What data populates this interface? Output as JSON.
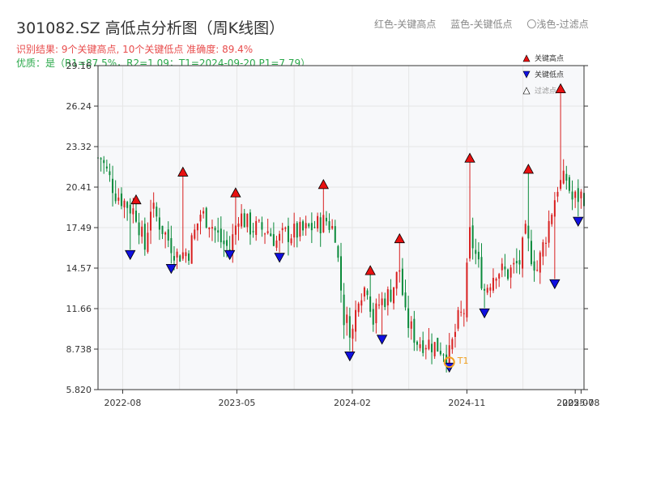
{
  "header": {
    "title": "301082.SZ 高低点分析图（周K线图）",
    "status": "识别结果: 9个关键高点, 10个关键低点  准确度: 89.4%",
    "quality": "优质：是（R1=87.5%，R2=1.09；T1=2024-09-20 P1=7.79）"
  },
  "top_legend": {
    "red": "红色-关键高点",
    "blue": "蓝色-关键低点",
    "gray": "〇浅色-过滤点"
  },
  "colors": {
    "up": "#d81e1e",
    "down": "#0a8a3a",
    "high_marker": "#e81010",
    "low_marker": "#1010e0",
    "t1_marker": "#f0a020",
    "plot_bg": "#f7f8fa",
    "grid": "#e6e6e6"
  },
  "chart_data": {
    "type": "candlestick",
    "ylim": [
      5.82,
      29.16
    ],
    "y_ticks": [
      "29.16",
      "26.24",
      "23.32",
      "20.41",
      "17.49",
      "14.57",
      "11.66",
      "8.738",
      "5.820"
    ],
    "x_ticks": [
      "2022-08",
      "2023-05",
      "2024-02",
      "2024-11",
      "2025-07",
      "2025-08"
    ],
    "legend": [
      {
        "label": "关键高点",
        "color": "#e81010",
        "shape": "triangle-up"
      },
      {
        "label": "关键低点",
        "color": "#1010e0",
        "shape": "triangle-down"
      },
      {
        "label": "过滤点",
        "color": "#ffffff",
        "shape": "triangle-up"
      }
    ],
    "anchor_points": [
      [
        "2022-06-10",
        22.5
      ],
      [
        "2022-07-15",
        20.0
      ],
      [
        "2022-09-02",
        18.5
      ],
      [
        "2022-09-23",
        16.0
      ],
      [
        "2022-10-07",
        19.0
      ],
      [
        "2022-11-11",
        17.0
      ],
      [
        "2022-12-09",
        15.5
      ],
      [
        "2023-01-06",
        15.8
      ],
      [
        "2023-02-03",
        18.5
      ],
      [
        "2023-02-24",
        18.0
      ],
      [
        "2023-03-24",
        16.5
      ],
      [
        "2023-04-14",
        15.9
      ],
      [
        "2023-05-05",
        18.5
      ],
      [
        "2023-06-02",
        17.5
      ],
      [
        "2023-07-14",
        17.3
      ],
      [
        "2023-08-04",
        16.5
      ],
      [
        "2023-08-25",
        17.0
      ],
      [
        "2023-10-06",
        17.2
      ],
      [
        "2023-11-03",
        17.6
      ],
      [
        "2023-12-01",
        18.0
      ],
      [
        "2023-12-22",
        17.2
      ],
      [
        "2024-01-12",
        11.0
      ],
      [
        "2024-02-02",
        10.0
      ],
      [
        "2024-02-16",
        12.8
      ],
      [
        "2024-03-08",
        13.3
      ],
      [
        "2024-03-22",
        10.8
      ],
      [
        "2024-04-05",
        12.0
      ],
      [
        "2024-05-03",
        12.8
      ],
      [
        "2024-05-24",
        14.5
      ],
      [
        "2024-06-07",
        11.0
      ],
      [
        "2024-07-05",
        9.3
      ],
      [
        "2024-08-02",
        9.2
      ],
      [
        "2024-09-06",
        8.7
      ],
      [
        "2024-09-20",
        8.3
      ],
      [
        "2024-10-11",
        10.8
      ],
      [
        "2024-10-25",
        11.5
      ],
      [
        "2024-11-08",
        17.0
      ],
      [
        "2024-11-22",
        15.5
      ],
      [
        "2024-12-13",
        13.0
      ],
      [
        "2025-01-10",
        14.5
      ],
      [
        "2025-02-07",
        14.2
      ],
      [
        "2025-03-07",
        15.0
      ],
      [
        "2025-03-21",
        17.0
      ],
      [
        "2025-04-04",
        15.5
      ],
      [
        "2025-04-18",
        14.5
      ],
      [
        "2025-05-09",
        17.0
      ],
      [
        "2025-06-06",
        20.5
      ],
      [
        "2025-06-27",
        21.0
      ],
      [
        "2025-07-11",
        19.5
      ],
      [
        "2025-08-01",
        19.8
      ]
    ],
    "highs": [
      {
        "date": "2022-09-02",
        "price": 19.2
      },
      {
        "date": "2022-12-23",
        "price": 21.2
      },
      {
        "date": "2023-04-28",
        "price": 19.7
      },
      {
        "date": "2023-11-24",
        "price": 20.3
      },
      {
        "date": "2024-03-15",
        "price": 14.1
      },
      {
        "date": "2024-05-24",
        "price": 16.4
      },
      {
        "date": "2024-11-08",
        "price": 22.2
      },
      {
        "date": "2025-03-28",
        "price": 21.4
      },
      {
        "date": "2025-06-13",
        "price": 27.2
      }
    ],
    "lows": [
      {
        "date": "2022-08-19",
        "price": 15.9
      },
      {
        "date": "2022-11-25",
        "price": 14.9
      },
      {
        "date": "2023-04-14",
        "price": 15.9
      },
      {
        "date": "2023-08-11",
        "price": 15.7
      },
      {
        "date": "2024-01-26",
        "price": 8.6
      },
      {
        "date": "2024-04-12",
        "price": 9.8
      },
      {
        "date": "2024-09-20",
        "price": 7.79
      },
      {
        "date": "2024-12-13",
        "price": 11.7
      },
      {
        "date": "2025-05-30",
        "price": 13.8
      },
      {
        "date": "2025-07-25",
        "price": 18.3
      }
    ],
    "t1": {
      "label": "T1",
      "date": "2024-09-20",
      "price": 7.79
    },
    "filtered": []
  }
}
